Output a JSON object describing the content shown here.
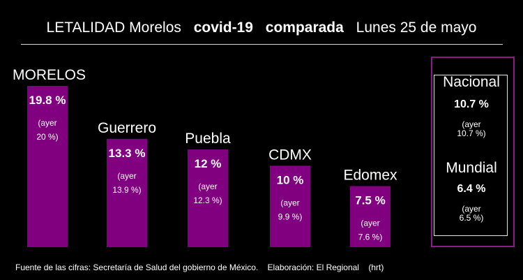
{
  "title": {
    "part1": "LETALIDAD Morelos",
    "part2": "covid-19",
    "part3": "comparada",
    "part4": "Lunes 25 de mayo"
  },
  "colors": {
    "bar": "#800080",
    "frame": "#8a1c8a",
    "background": "#000000",
    "text": "#ffffff"
  },
  "chart_data": {
    "type": "bar",
    "categories": [
      "MORELOS",
      "Guerrero",
      "Puebla",
      "CDMX",
      "Edomex"
    ],
    "values": [
      19.8,
      13.3,
      12,
      10,
      7.5
    ],
    "labels": [
      "19.8 %",
      "13.3 %",
      "12 %",
      "10 %",
      "7.5 %"
    ],
    "previous_label": "(ayer",
    "previous_values": [
      "20 %)",
      "13.9 %)",
      "12.3 %)",
      "9.9 %)",
      "7.6 %)"
    ]
  },
  "side_panel": {
    "nacional": {
      "name": "Nacional",
      "value": "10.7 %",
      "prev_line1": "(ayer",
      "prev_line2": "10.7 %)"
    },
    "mundial": {
      "name": "Mundial",
      "value": "6.4 %",
      "prev_line1": "(ayer",
      "prev_line2": "6.5 %)"
    }
  },
  "footer": {
    "source": "Fuente de las cifras: Secretaría de Salud del gobierno de México.",
    "credit": "Elaboración: El Regional",
    "initials": "(hrt)"
  }
}
